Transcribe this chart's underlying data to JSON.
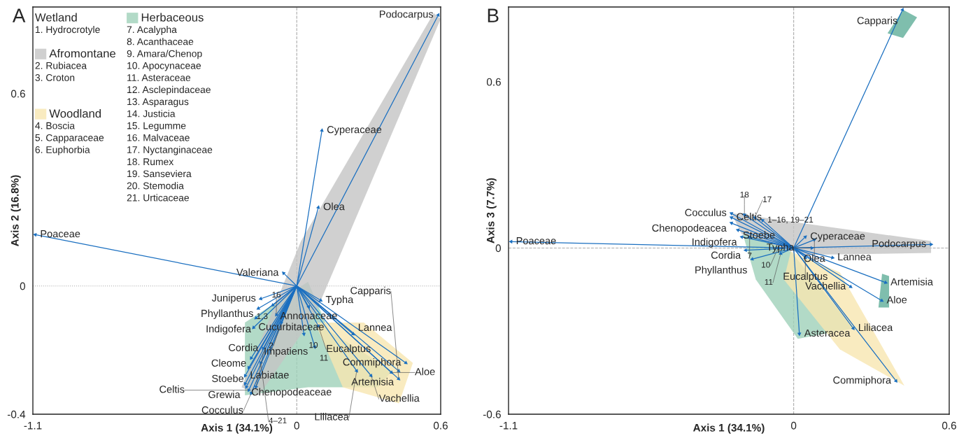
{
  "chart_data": [
    {
      "type": "scatter",
      "title": "A",
      "xlabel": "Axis 1 (34.1%)",
      "ylabel": "Axis 2 (16.8%)",
      "xlim": [
        -1.1,
        0.6
      ],
      "ylim": [
        -0.4,
        0.87
      ],
      "xticks": [
        -1.1,
        0,
        0.6
      ],
      "yticks": [
        -0.4,
        0,
        0.6
      ],
      "grid": false,
      "legend": "top left",
      "ref_lines": [
        {
          "axis": "x",
          "value": 0,
          "color": "#aaaaaa",
          "line_style": "dashed"
        },
        {
          "axis": "y",
          "value": 0,
          "color": "#aaaaaa",
          "line_style": "dotted"
        }
      ],
      "series": [
        {
          "type": "area",
          "name": "Herbaceous",
          "color": "#9fd1b9",
          "x": [
            -0.216,
            0.047,
            0.134,
            0.397,
            0.338,
            0.047,
            -0.216
          ],
          "values": [
            -0.114,
            0.013,
            -0.139,
            -0.265,
            -0.316,
            -0.316,
            -0.341
          ]
        },
        {
          "type": "area",
          "name": "Afromontane",
          "color": "#c4c4c4",
          "x": [
            0.571,
            0.6,
            0.076,
            -0.157,
            -0.23,
            0.017
          ],
          "values": [
            0.851,
            0.833,
            -0.088,
            -0.341,
            -0.316,
            0.139
          ]
        },
        {
          "type": "area",
          "name": "Woodland",
          "color": "#f8e6b0",
          "x": [
            0.076,
            0.28,
            0.484,
            0.426,
            0.192
          ],
          "values": [
            -0.114,
            -0.114,
            -0.24,
            -0.366,
            -0.316
          ]
        },
        {
          "color": "#1a6fc0",
          "x": [
            -1.09,
            0.105,
            0.09,
            0.59,
            -0.055,
            -0.15,
            -0.16,
            -0.17,
            -0.18,
            -0.14,
            -0.19,
            -0.2,
            -0.215,
            -0.215,
            -0.21,
            -0.2,
            -0.19,
            -0.17,
            0.1,
            0.05,
            0.09,
            0.235,
            0.455,
            0.425,
            0.395,
            0.31,
            0.25,
            0.425,
            -0.1,
            -0.085,
            -0.065,
            0.03,
            0.075,
            -0.15
          ],
          "values": [
            0.16,
            0.485,
            0.245,
            0.845,
            0.04,
            -0.04,
            -0.07,
            -0.1,
            -0.13,
            -0.195,
            -0.225,
            -0.255,
            -0.28,
            -0.305,
            -0.315,
            -0.325,
            -0.335,
            -0.315,
            -0.045,
            -0.065,
            -0.125,
            -0.15,
            -0.24,
            -0.265,
            -0.27,
            -0.28,
            -0.265,
            -0.29,
            -0.06,
            -0.09,
            -0.115,
            -0.15,
            -0.19,
            -0.24
          ]
        }
      ],
      "annotations": [
        "Wetland",
        "1. Hydrocrotyle",
        "2. Rubiacea",
        "3. Croton",
        "4. Boscia",
        "5. Capparaceae",
        "6. Euphorbia",
        "7. Acalypha",
        "8. Acanthaceae",
        "9. Amara/Chenop",
        "10. Apocynaceae",
        "11. Asteraceae",
        "12. Asclepindaceae",
        "13. Asparagus",
        "14. Justicia",
        "15. Legumme",
        "16. Malvaceae",
        "17. Nyctanginaceae",
        "18. Rumex",
        "19. Sanseviera",
        "20. Stemodia",
        "21. Urticaceae",
        {
          "text": "Poaceae",
          "x": -1.09,
          "y": 0.16
        },
        {
          "text": "Cyperaceae",
          "x": 0.105,
          "y": 0.485
        },
        {
          "text": "Olea",
          "x": 0.09,
          "y": 0.245
        },
        {
          "text": "Podocarpus",
          "x": 0.59,
          "y": 0.845
        },
        {
          "text": "Valeriana",
          "x": -0.055,
          "y": 0.04
        },
        {
          "text": "Juniperus",
          "x": -0.15,
          "y": -0.04
        },
        {
          "text": "Phyllanthus",
          "x": -0.16,
          "y": -0.07
        },
        {
          "text": "Indigofera",
          "x": -0.17,
          "y": -0.1
        },
        {
          "text": "Cucurbitaceae",
          "x": -0.18,
          "y": -0.13
        },
        {
          "text": "Cordia",
          "x": -0.14,
          "y": -0.195
        },
        {
          "text": "Cleome",
          "x": -0.19,
          "y": -0.225
        },
        {
          "text": "Stoebe",
          "x": -0.2,
          "y": -0.255
        },
        {
          "text": "Labiatae",
          "x": -0.215,
          "y": -0.28
        },
        {
          "text": "Grewia",
          "x": -0.215,
          "y": -0.305
        },
        {
          "text": "Chenopodeaceae",
          "x": -0.21,
          "y": -0.315
        },
        {
          "text": "Celtis",
          "x": -0.2,
          "y": -0.325
        },
        {
          "text": "Cocculus",
          "x": -0.19,
          "y": -0.335
        },
        {
          "text": "Impatiens",
          "x": -0.17,
          "y": -0.315
        },
        {
          "text": "Typha",
          "x": 0.1,
          "y": -0.045
        },
        {
          "text": "Annonaceae",
          "x": 0.05,
          "y": -0.065
        },
        {
          "text": "Eucalptus",
          "x": 0.09,
          "y": -0.125
        },
        {
          "text": "Lannea",
          "x": 0.235,
          "y": -0.15
        },
        {
          "text": "Commiphora",
          "x": 0.455,
          "y": -0.24
        },
        {
          "text": "Artemisia",
          "x": 0.425,
          "y": -0.265
        },
        {
          "text": "Aloe",
          "x": 0.395,
          "y": -0.27
        },
        {
          "text": "Vachellia",
          "x": 0.31,
          "y": -0.28
        },
        {
          "text": "Liliacea",
          "x": 0.25,
          "y": -0.265
        },
        {
          "text": "Capparis",
          "x": 0.425,
          "y": -0.29
        },
        {
          "text": "1,3",
          "x": -0.1,
          "y": -0.06
        },
        {
          "text": "16",
          "x": -0.085,
          "y": -0.09
        },
        {
          "text": "2",
          "x": -0.065,
          "y": -0.115
        },
        {
          "text": "10",
          "x": 0.03,
          "y": -0.15
        },
        {
          "text": "11",
          "x": 0.075,
          "y": -0.19
        },
        {
          "text": "4–21",
          "x": -0.15,
          "y": -0.24
        }
      ]
    },
    {
      "type": "scatter",
      "title": "B",
      "xlabel": "Axis 1 (34.1%)",
      "ylabel": "Axis 3 (7.7%)",
      "xlim": [
        -1.1,
        0.6
      ],
      "ylim": [
        -0.6,
        0.87
      ],
      "xticks": [
        -1.1,
        0,
        0.6
      ],
      "yticks": [
        -0.6,
        0,
        0.6
      ],
      "grid": false,
      "ref_lines": [
        {
          "axis": "x",
          "value": 0,
          "color": "#aaaaaa",
          "line_style": "dashed"
        },
        {
          "axis": "y",
          "value": 0,
          "color": "#aaaaaa",
          "line_style": "dashed"
        }
      ],
      "series": [
        {
          "type": "area",
          "color": "#9fd1b9",
          "x": [
            -0.2,
            -0.011,
            0.232,
            0.016,
            -0.146
          ],
          "values": [
            0.063,
            -0.013,
            -0.29,
            -0.328,
            -0.114
          ]
        },
        {
          "type": "area",
          "color": "#5fae98",
          "x": [
            0.422,
            0.476,
            0.422,
            0.362
          ],
          "values": [
            0.86,
            0.833,
            0.758,
            0.775
          ]
        },
        {
          "type": "area",
          "color": "#5fae98",
          "x": [
            0.341,
            0.368,
            0.368,
            0.327
          ],
          "values": [
            -0.093,
            -0.101,
            -0.215,
            -0.215
          ]
        },
        {
          "type": "area",
          "color": "#c4c4c4",
          "x": [
            -0.241,
            0.043,
            0.53,
            0.53,
            0.043,
            -0.2
          ],
          "values": [
            0.126,
            0.088,
            0.025,
            -0.018,
            -0.025,
            0.05
          ]
        },
        {
          "type": "area",
          "color": "#f8e6b0",
          "x": [
            -0.011,
            0.178,
            0.427,
            0.178,
            -0.038
          ],
          "values": [
            -0.013,
            -0.088,
            -0.497,
            -0.366,
            -0.114
          ]
        },
        {
          "color": "#1a6fc0",
          "x": [
            -1.09,
            0.42,
            0.045,
            0.53,
            0.08,
            0.07,
            0.15,
            0.045,
            0.355,
            0.34,
            0.22,
            0.23,
            0.022,
            0.395,
            -0.24,
            -0.24,
            -0.24,
            -0.215,
            -0.2,
            -0.185,
            -0.16,
            -0.19,
            -0.15,
            -0.17,
            -0.06,
            -0.05,
            -0.12
          ],
          "values": [
            0.023,
            0.86,
            0.04,
            0.013,
            0.03,
            0.0,
            -0.035,
            -0.035,
            -0.125,
            -0.19,
            -0.14,
            -0.29,
            -0.31,
            -0.48,
            0.125,
            0.11,
            0.09,
            0.065,
            0.04,
            -0.008,
            -0.04,
            0.12,
            0.11,
            0.04,
            0.0,
            -0.02,
            0.1
          ]
        }
      ],
      "annotations": [
        {
          "text": "Poaceae",
          "x": -1.09,
          "y": 0.023
        },
        {
          "text": "Capparis",
          "x": 0.42,
          "y": 0.86
        },
        {
          "text": "Cyperaceae",
          "x": 0.045,
          "y": 0.04
        },
        {
          "text": "Podocarpus",
          "x": 0.53,
          "y": 0.013
        },
        {
          "text": "Olea",
          "x": 0.08,
          "y": 0.03
        },
        {
          "text": "Typha",
          "x": 0.07,
          "y": 0.0
        },
        {
          "text": "Lannea",
          "x": 0.15,
          "y": -0.035
        },
        {
          "text": "Eucalptus",
          "x": 0.045,
          "y": -0.035
        },
        {
          "text": "Artemisia",
          "x": 0.355,
          "y": -0.125
        },
        {
          "text": "Aloe",
          "x": 0.34,
          "y": -0.19
        },
        {
          "text": "Vachellia",
          "x": 0.22,
          "y": -0.14
        },
        {
          "text": "Liliacea",
          "x": 0.23,
          "y": -0.29
        },
        {
          "text": "Asteracea",
          "x": 0.022,
          "y": -0.31
        },
        {
          "text": "Commiphora",
          "x": 0.395,
          "y": -0.48
        },
        {
          "text": "Cocculus",
          "x": -0.24,
          "y": 0.125
        },
        {
          "text": "Celtis",
          "x": -0.24,
          "y": 0.11
        },
        {
          "text": "Chenopodeacea",
          "x": -0.24,
          "y": 0.09
        },
        {
          "text": "Stoebe",
          "x": -0.215,
          "y": 0.065
        },
        {
          "text": "Indigofera",
          "x": -0.2,
          "y": 0.04
        },
        {
          "text": "Cordia",
          "x": -0.185,
          "y": -0.008
        },
        {
          "text": "Phyllanthus",
          "x": -0.16,
          "y": -0.04
        },
        {
          "text": "18",
          "x": -0.19,
          "y": 0.12
        },
        {
          "text": "17",
          "x": -0.15,
          "y": 0.11
        },
        {
          "text": "7",
          "x": -0.17,
          "y": 0.04
        },
        {
          "text": "10",
          "x": -0.06,
          "y": 0.0
        },
        {
          "text": "11",
          "x": -0.05,
          "y": -0.02
        },
        {
          "text": "1–16, 19–21",
          "x": -0.12,
          "y": 0.1
        }
      ]
    }
  ]
}
